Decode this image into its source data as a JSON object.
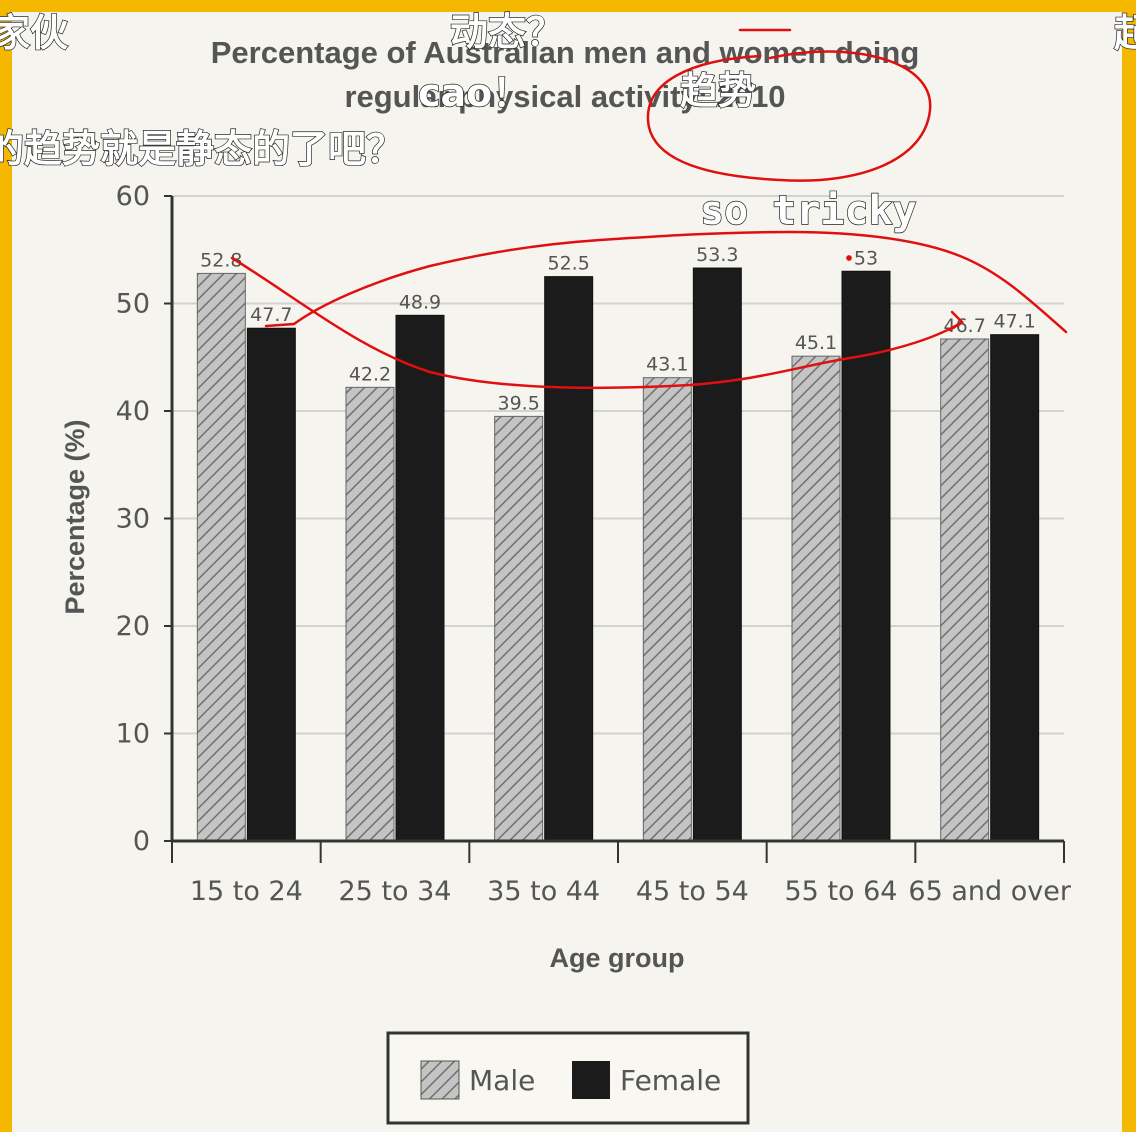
{
  "chart_data": {
    "type": "bar",
    "title_line1": "Percentage of Australian men and women doing",
    "title_line2": "regular physical activity: 2010",
    "xlabel": "Age group",
    "ylabel": "Percentage (%)",
    "ylim": [
      0,
      60
    ],
    "yticks": [
      "0",
      "10",
      "20",
      "30",
      "40",
      "50",
      "60"
    ],
    "grid": true,
    "legend_position": "bottom",
    "categories": [
      "15 to 24",
      "25 to 34",
      "35 to 44",
      "45 to 54",
      "55 to 64",
      "65 and over"
    ],
    "series": [
      {
        "name": "Male",
        "values": [
          52.8,
          42.2,
          39.5,
          43.1,
          45.1,
          46.7
        ],
        "labels": [
          "52.8",
          "42.2",
          "39.5",
          "43.1",
          "45.1",
          "46.7"
        ],
        "pattern": "diagonal-hatch",
        "color": "#a9a9a9"
      },
      {
        "name": "Female",
        "values": [
          47.7,
          48.9,
          52.5,
          53.3,
          53,
          47.1
        ],
        "labels": [
          "47.7",
          "48.9",
          "52.5",
          "53.3",
          "53",
          "47.1"
        ],
        "color": "#1b1b1b"
      }
    ]
  },
  "danmaku": [
    {
      "text": "家伙",
      "style": "dan"
    },
    {
      "text": "动态？",
      "style": "dan"
    },
    {
      "text": "cao！",
      "style": "dan"
    },
    {
      "text": "趋势",
      "style": "dan"
    },
    {
      "text": "的趋势就是静态的了吧？",
      "style": "dan"
    },
    {
      "text": "so tricky",
      "style": "dan-mono"
    },
    {
      "text": "起",
      "style": "dan"
    }
  ],
  "annotation_color": "#e01010",
  "frame_color": "#f5b800"
}
